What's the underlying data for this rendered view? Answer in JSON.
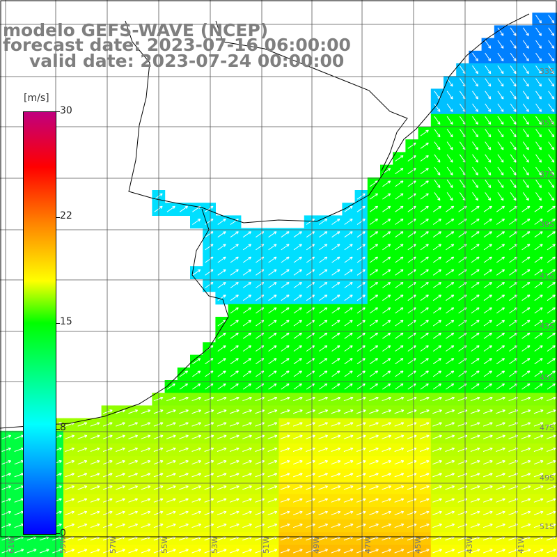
{
  "title": {
    "line1": "modelo GEFS-WAVE (NCEP)",
    "line2": "forecast date: 2023-07-16 06:00:00",
    "line3": "valid date: 2023-07-24 00:00:00"
  },
  "colorbar": {
    "unit": "[m/s]",
    "ticks": [
      {
        "label": "30",
        "value": 30
      },
      {
        "label": "22",
        "value": 22
      },
      {
        "label": "15",
        "value": 15
      },
      {
        "label": "8",
        "value": 8
      },
      {
        "label": "0",
        "value": 0
      }
    ],
    "colors": [
      "#0000ff",
      "#00a0ff",
      "#00ffff",
      "#00ff00",
      "#ffff00",
      "#ff8000",
      "#ff0000",
      "#c0007f"
    ]
  },
  "lon_labels": [
    "61W",
    "59W",
    "57W",
    "55W",
    "53W",
    "51W",
    "49W",
    "47W",
    "45W",
    "43W",
    "41W"
  ],
  "lat_labels": [
    "33S",
    "35S",
    "37S",
    "39S",
    "41S",
    "43S",
    "45S",
    "47S",
    "49S",
    "51S"
  ],
  "field": {
    "variable": "wind speed",
    "unit": "m/s"
  }
}
